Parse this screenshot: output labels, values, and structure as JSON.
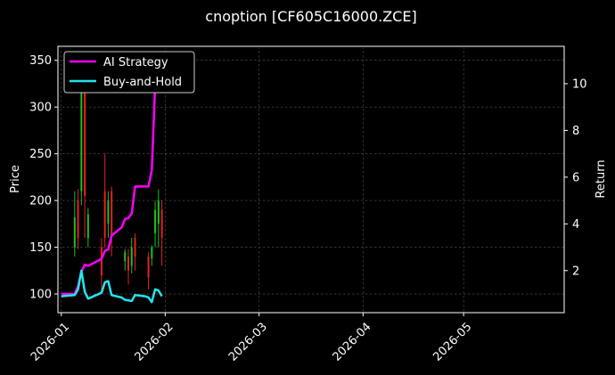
{
  "chart_data": {
    "type": "line",
    "title": "cnoption [CF605C16000.ZCE]",
    "xlabel": "",
    "ylabel": "Price",
    "y2label": "Return",
    "x_range": [
      "2025-12-31",
      "2026-05-31"
    ],
    "x_ticks": [
      "2026-01",
      "2026-02",
      "2026-03",
      "2026-04",
      "2026-05"
    ],
    "x_tick_dates": [
      "2026-01-01",
      "2026-02-01",
      "2026-03-01",
      "2026-04-01",
      "2026-05-01"
    ],
    "ylim": [
      80,
      365
    ],
    "y_ticks": [
      100,
      150,
      200,
      250,
      300,
      350
    ],
    "y2lim": [
      0.2,
      11.6
    ],
    "y2_ticks": [
      2,
      4,
      6,
      8,
      10
    ],
    "grid": true,
    "legend_placement": "top-left",
    "candles": [
      {
        "date": "2026-01-05",
        "open": 150,
        "close": 182,
        "high": 210,
        "low": 140
      },
      {
        "date": "2026-01-06",
        "open": 200,
        "close": 160,
        "high": 212,
        "low": 148
      },
      {
        "date": "2026-01-07",
        "open": 210,
        "close": 330,
        "high": 355,
        "low": 195
      },
      {
        "date": "2026-01-08",
        "open": 330,
        "close": 205,
        "high": 345,
        "low": 160
      },
      {
        "date": "2026-01-09",
        "open": 160,
        "close": 185,
        "high": 192,
        "low": 150
      },
      {
        "date": "2026-01-13",
        "open": 150,
        "close": 120,
        "high": 160,
        "low": 100
      },
      {
        "date": "2026-01-14",
        "open": 210,
        "close": 160,
        "high": 250,
        "low": 150
      },
      {
        "date": "2026-01-15",
        "open": 175,
        "close": 200,
        "high": 210,
        "low": 160
      },
      {
        "date": "2026-01-16",
        "open": 210,
        "close": 160,
        "high": 215,
        "low": 140
      },
      {
        "date": "2026-01-20",
        "open": 135,
        "close": 145,
        "high": 148,
        "low": 125
      },
      {
        "date": "2026-01-21",
        "open": 140,
        "close": 125,
        "high": 148,
        "low": 110
      },
      {
        "date": "2026-01-22",
        "open": 130,
        "close": 150,
        "high": 160,
        "low": 122
      },
      {
        "date": "2026-01-23",
        "open": 160,
        "close": 140,
        "high": 165,
        "low": 125
      },
      {
        "date": "2026-01-27",
        "open": 140,
        "close": 118,
        "high": 145,
        "low": 105
      },
      {
        "date": "2026-01-28",
        "open": 138,
        "close": 150,
        "high": 152,
        "low": 130
      },
      {
        "date": "2026-01-29",
        "open": 165,
        "close": 190,
        "high": 200,
        "low": 150
      },
      {
        "date": "2026-01-30",
        "open": 175,
        "close": 200,
        "high": 212,
        "low": 150
      },
      {
        "date": "2026-01-31",
        "open": 190,
        "close": 160,
        "high": 200,
        "low": 130
      }
    ],
    "series": [
      {
        "name": "AI Strategy",
        "axis": "right",
        "color": "#ff00ff",
        "points": [
          [
            "2026-01-01",
            1.0
          ],
          [
            "2026-01-05",
            1.0
          ],
          [
            "2026-01-06",
            1.35
          ],
          [
            "2026-01-07",
            1.95
          ],
          [
            "2026-01-08",
            2.25
          ],
          [
            "2026-01-09",
            2.2
          ],
          [
            "2026-01-13",
            2.5
          ],
          [
            "2026-01-14",
            2.85
          ],
          [
            "2026-01-15",
            2.9
          ],
          [
            "2026-01-16",
            3.5
          ],
          [
            "2026-01-19",
            3.85
          ],
          [
            "2026-01-20",
            4.2
          ],
          [
            "2026-01-21",
            4.25
          ],
          [
            "2026-01-22",
            4.45
          ],
          [
            "2026-01-23",
            5.6
          ],
          [
            "2026-01-26",
            5.6
          ],
          [
            "2026-01-27",
            5.6
          ],
          [
            "2026-01-28",
            6.3
          ],
          [
            "2026-01-29",
            10.0
          ],
          [
            "2026-01-30",
            11.0
          ]
        ]
      },
      {
        "name": "Buy-and-Hold",
        "axis": "right",
        "color": "#22e5ee",
        "points": [
          [
            "2026-01-01",
            0.9
          ],
          [
            "2026-01-05",
            0.95
          ],
          [
            "2026-01-06",
            1.2
          ],
          [
            "2026-01-07",
            2.0
          ],
          [
            "2026-01-08",
            1.1
          ],
          [
            "2026-01-09",
            0.8
          ],
          [
            "2026-01-13",
            1.05
          ],
          [
            "2026-01-14",
            1.5
          ],
          [
            "2026-01-15",
            1.55
          ],
          [
            "2026-01-16",
            0.95
          ],
          [
            "2026-01-19",
            0.85
          ],
          [
            "2026-01-20",
            0.75
          ],
          [
            "2026-01-22",
            0.7
          ],
          [
            "2026-01-23",
            0.95
          ],
          [
            "2026-01-26",
            0.9
          ],
          [
            "2026-01-27",
            0.85
          ],
          [
            "2026-01-28",
            0.65
          ],
          [
            "2026-01-29",
            1.2
          ],
          [
            "2026-01-30",
            1.15
          ],
          [
            "2026-01-31",
            0.9
          ]
        ]
      }
    ]
  }
}
